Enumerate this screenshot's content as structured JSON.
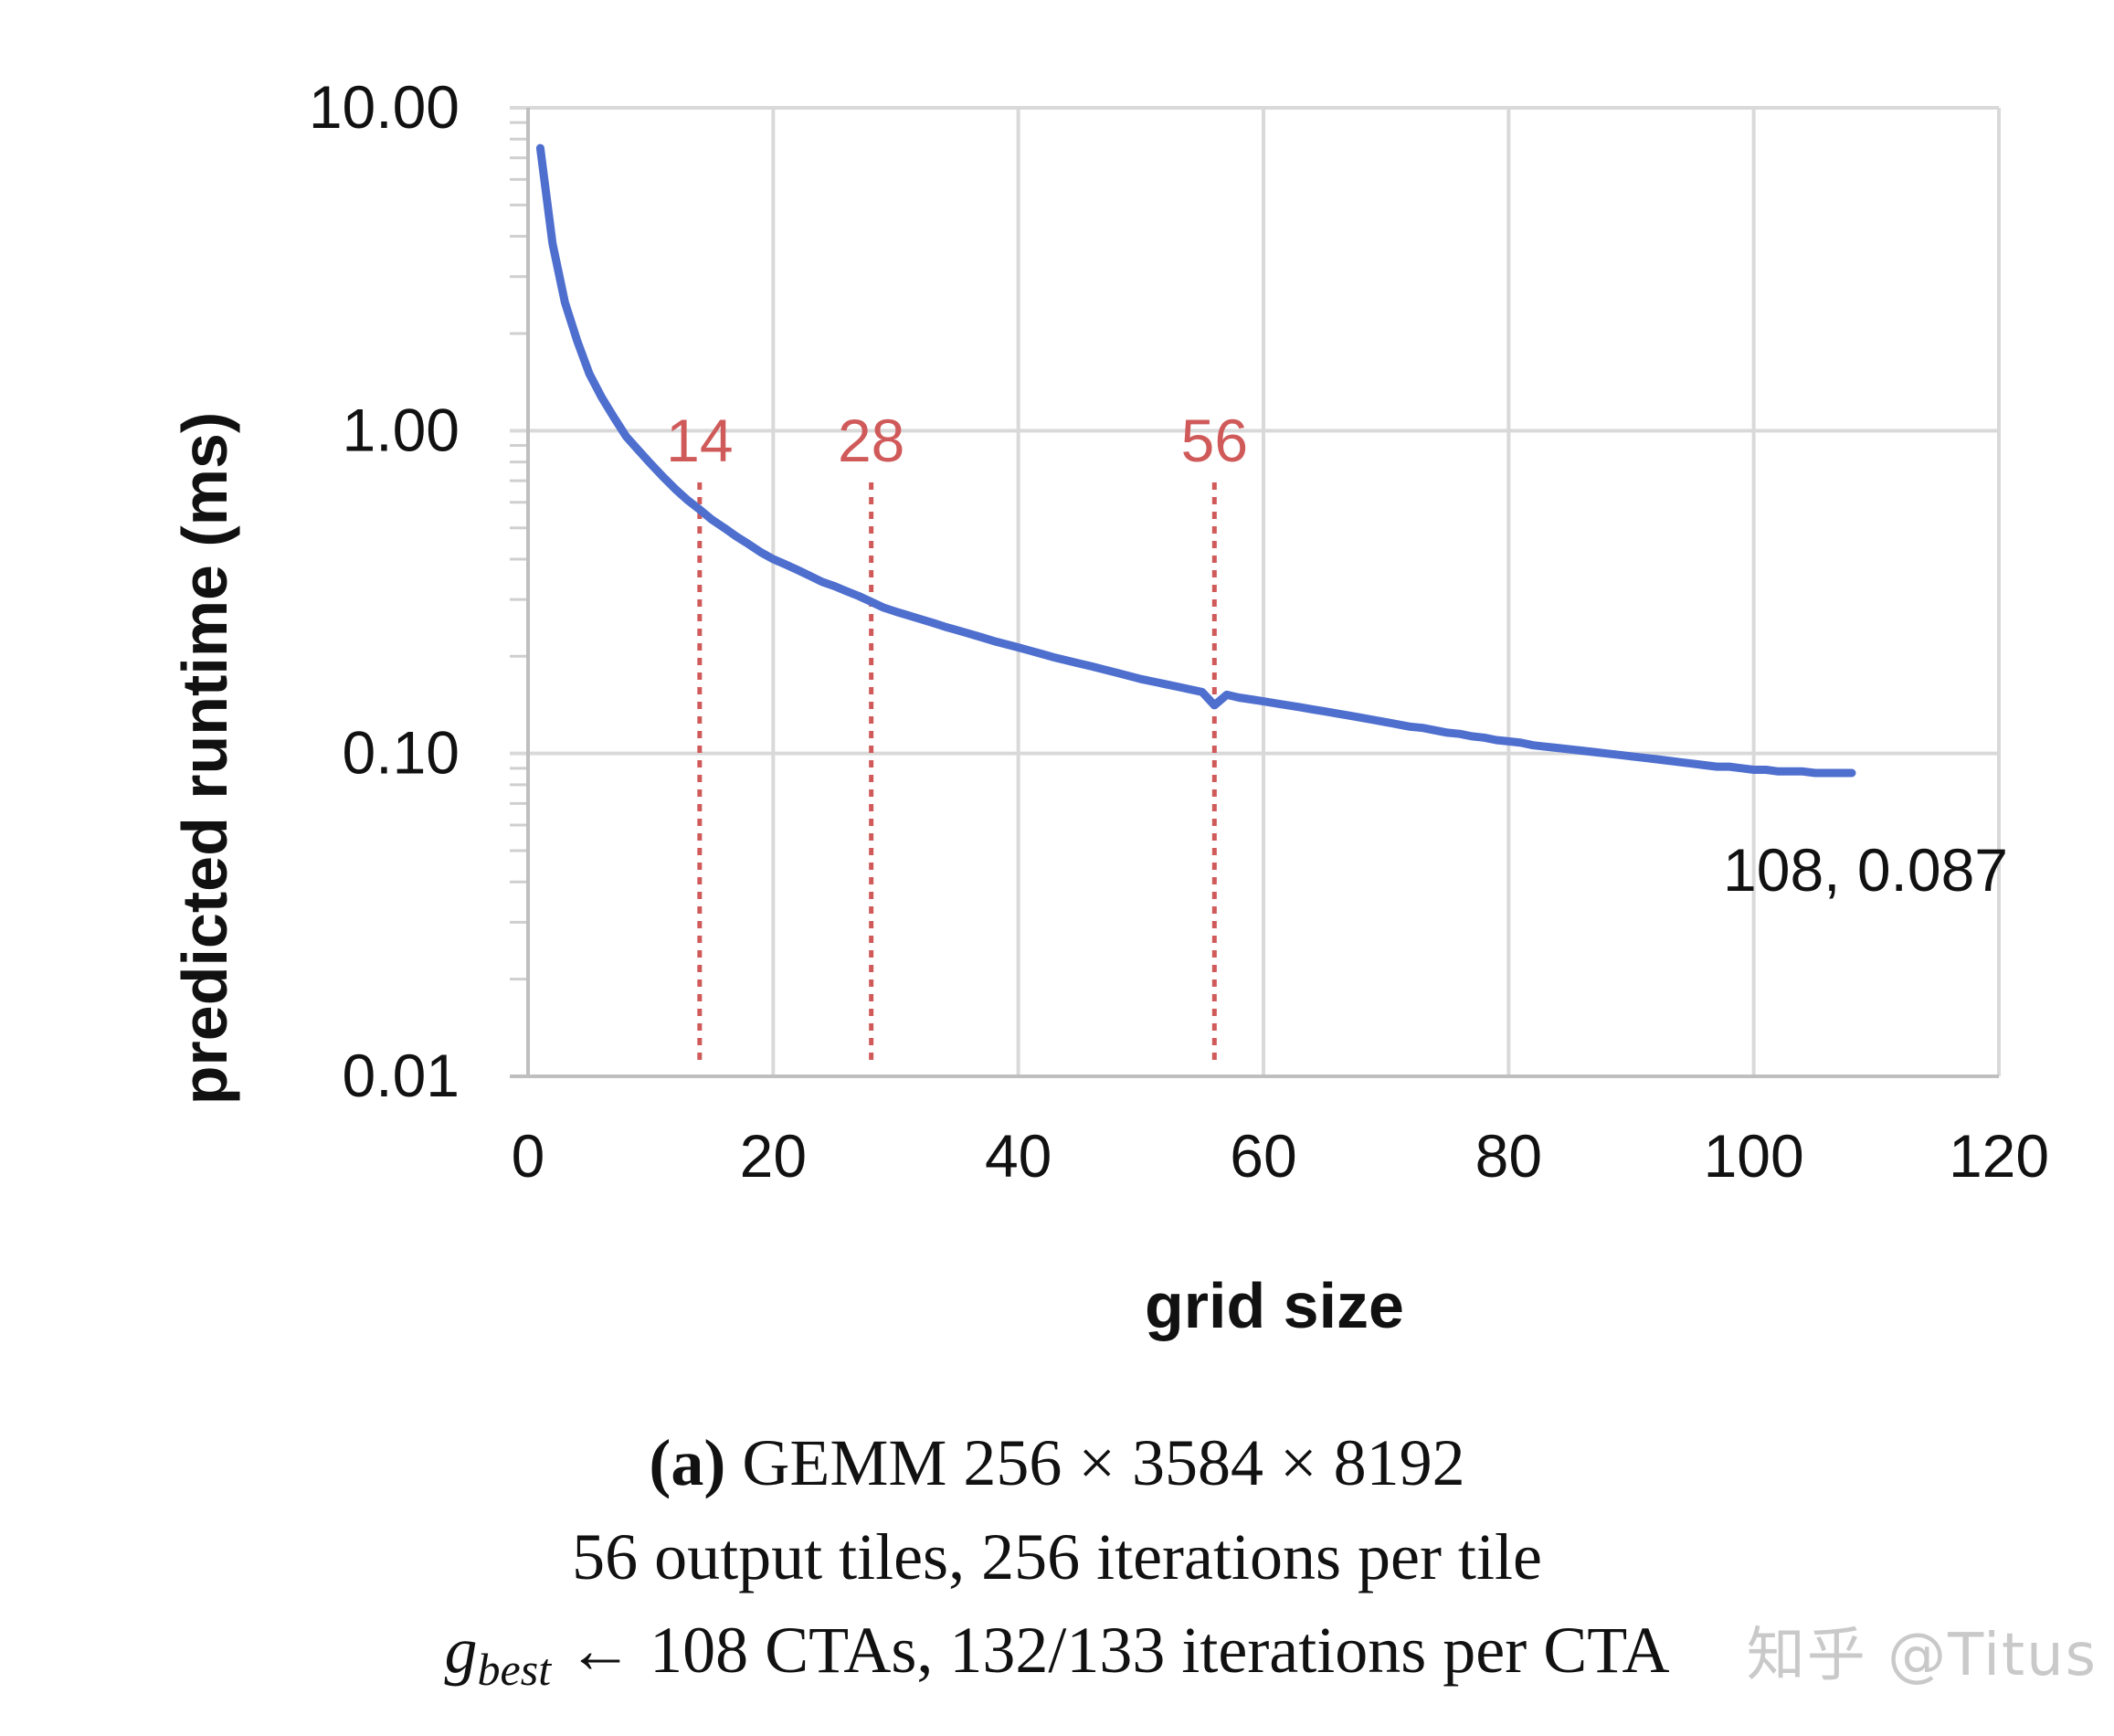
{
  "chart_data": {
    "type": "line",
    "ylabel": "predicted runtime (ms)",
    "xlabel": "grid size",
    "y_scale": "log",
    "xlim": [
      0,
      120
    ],
    "ylim": [
      0.01,
      10
    ],
    "x_ticks": [
      0,
      20,
      40,
      60,
      80,
      100,
      120
    ],
    "x_tick_labels": [
      "0",
      "20",
      "40",
      "60",
      "80",
      "100",
      "120"
    ],
    "y_ticks": [
      0.01,
      0.1,
      1,
      10
    ],
    "y_tick_labels": [
      "0.01",
      "0.10",
      "1.00",
      "10.00"
    ],
    "grid": true,
    "series": [
      {
        "name": "predicted runtime",
        "color": "#4f6fcf",
        "x": [
          1,
          2,
          3,
          4,
          5,
          6,
          7,
          8,
          9,
          10,
          11,
          12,
          13,
          14,
          15,
          16,
          17,
          18,
          19,
          20,
          21,
          22,
          23,
          24,
          25,
          26,
          27,
          28,
          29,
          30,
          31,
          32,
          33,
          34,
          35,
          36,
          37,
          38,
          39,
          40,
          41,
          42,
          43,
          44,
          45,
          46,
          47,
          48,
          49,
          50,
          51,
          52,
          53,
          54,
          55,
          56,
          57,
          58,
          59,
          60,
          61,
          62,
          63,
          64,
          65,
          66,
          67,
          68,
          69,
          70,
          71,
          72,
          73,
          74,
          75,
          76,
          77,
          78,
          79,
          80,
          81,
          82,
          83,
          84,
          85,
          86,
          87,
          88,
          89,
          90,
          91,
          92,
          93,
          94,
          95,
          96,
          97,
          98,
          99,
          100,
          101,
          102,
          103,
          104,
          105,
          106,
          107,
          108
        ],
        "values": [
          7.5,
          3.8,
          2.5,
          1.9,
          1.5,
          1.27,
          1.1,
          0.96,
          0.87,
          0.79,
          0.72,
          0.66,
          0.61,
          0.57,
          0.53,
          0.5,
          0.47,
          0.445,
          0.42,
          0.4,
          0.385,
          0.37,
          0.355,
          0.34,
          0.33,
          0.318,
          0.307,
          0.295,
          0.283,
          0.275,
          0.268,
          0.261,
          0.254,
          0.247,
          0.241,
          0.235,
          0.229,
          0.223,
          0.218,
          0.213,
          0.208,
          0.203,
          0.198,
          0.194,
          0.19,
          0.186,
          0.182,
          0.178,
          0.174,
          0.17,
          0.167,
          0.164,
          0.161,
          0.158,
          0.155,
          0.141,
          0.152,
          0.149,
          0.147,
          0.145,
          0.143,
          0.141,
          0.139,
          0.137,
          0.135,
          0.133,
          0.131,
          0.129,
          0.127,
          0.125,
          0.123,
          0.121,
          0.12,
          0.118,
          0.116,
          0.115,
          0.113,
          0.112,
          0.11,
          0.109,
          0.108,
          0.106,
          0.105,
          0.104,
          0.103,
          0.102,
          0.101,
          0.1,
          0.099,
          0.098,
          0.097,
          0.096,
          0.095,
          0.094,
          0.093,
          0.092,
          0.091,
          0.091,
          0.09,
          0.089,
          0.089,
          0.088,
          0.088,
          0.088,
          0.087,
          0.087,
          0.087,
          0.087
        ]
      }
    ],
    "vlines": [
      {
        "x": 14,
        "label": "14",
        "color": "#d05a5a"
      },
      {
        "x": 28,
        "label": "28",
        "color": "#d05a5a"
      },
      {
        "x": 56,
        "label": "56",
        "color": "#d05a5a"
      }
    ],
    "annotations": [
      {
        "x": 108,
        "y": 0.087,
        "text": "108, 0.087"
      }
    ]
  },
  "caption": {
    "label": "(a)",
    "line1": "GEMM 256 × 3584 × 8192",
    "line2": "56 output tiles, 256 iterations per tile",
    "g_symbol": "g",
    "g_subscript": "best",
    "line3": "← 108 CTAs, 132/133 iterations per CTA"
  },
  "watermark": "知乎 @Titus"
}
